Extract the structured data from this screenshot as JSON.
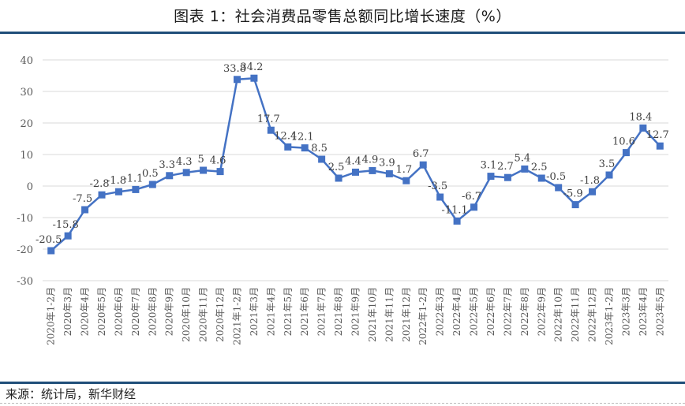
{
  "header": {
    "title": "图表 1：社会消费品零售总额同比增长速度（%）"
  },
  "footer": {
    "source": "来源：统计局，新华财经"
  },
  "colors": {
    "line": "#4472C4",
    "rule": "#1F4E79",
    "grid": "#D9D9D9",
    "text": "#595959"
  },
  "chart_data": {
    "type": "line",
    "title": "图表 1：社会消费品零售总额同比增长速度（%）",
    "xlabel": "",
    "ylabel": "",
    "ylim": [
      -30,
      40
    ],
    "yticks": [
      40,
      30,
      20,
      10,
      0,
      -10,
      -20,
      -30
    ],
    "grid": true,
    "legend": "none",
    "categories": [
      "2020年1-2月",
      "2020年3月",
      "2020年4月",
      "2020年5月",
      "2020年6月",
      "2020年7月",
      "2020年8月",
      "2020年9月",
      "2020年10月",
      "2020年11月",
      "2020年12月",
      "2021年1-2月",
      "2021年3月",
      "2021年4月",
      "2021年5月",
      "2021年6月",
      "2021年7月",
      "2021年8月",
      "2021年9月",
      "2021年10月",
      "2021年11月",
      "2021年12月",
      "2022年1-2月",
      "2022年3月",
      "2022年4月",
      "2022年5月",
      "2022年6月",
      "2022年7月",
      "2022年8月",
      "2022年9月",
      "2022年10月",
      "2022年11月",
      "2022年12月",
      "2023年1-2月",
      "2023年3月",
      "2023年4月",
      "2023年5月"
    ],
    "series": [
      {
        "name": "社会消费品零售总额同比增长速度",
        "values": [
          -20.5,
          -15.8,
          -7.5,
          -2.8,
          -1.8,
          -1.1,
          0.5,
          3.3,
          4.3,
          5,
          4.6,
          33.8,
          34.2,
          17.7,
          12.4,
          12.1,
          8.5,
          2.5,
          4.4,
          4.9,
          3.9,
          1.7,
          6.7,
          -3.5,
          -11.1,
          -6.7,
          3.1,
          2.7,
          5.4,
          2.5,
          -0.5,
          -5.9,
          -1.8,
          3.5,
          10.6,
          18.4,
          12.7
        ],
        "labels": [
          "-20.5",
          "-15.8",
          "-7.5",
          "-2.8",
          "-1.8",
          "-1.1",
          "0.5",
          "3.3",
          "4.3",
          "5",
          "4.6",
          "33.8",
          "34.2",
          "17.7",
          "12.4",
          "12.1",
          "8.5",
          "2.5",
          "4.4",
          "4.9",
          "3.9",
          "1.7",
          "6.7",
          "-3.5",
          "-11.1",
          "-6.7",
          "3.1",
          "2.7",
          "5.4",
          "2.5",
          "-0.5",
          "-5.9",
          "-1.8",
          "3.5",
          "10.6",
          "18.4",
          "12.7"
        ]
      }
    ]
  }
}
